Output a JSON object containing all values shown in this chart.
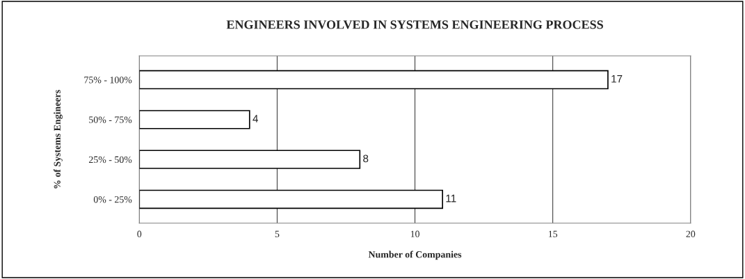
{
  "chart_data": {
    "type": "bar",
    "orientation": "horizontal",
    "title": "ENGINEERS INVOLVED IN SYSTEMS ENGINEERING PROCESS",
    "xlabel": "Number of Companies",
    "ylabel": "% of Systems Engineers",
    "categories": [
      "75% - 100%",
      "50% - 75%",
      "25% - 50%",
      "0% - 25%"
    ],
    "values": [
      17,
      4,
      8,
      11
    ],
    "color": "#ffffff",
    "xlim": [
      0,
      20
    ],
    "xticks": [
      0,
      5,
      10,
      15,
      20
    ],
    "grid": "x",
    "data_labels": true,
    "legend": false
  }
}
